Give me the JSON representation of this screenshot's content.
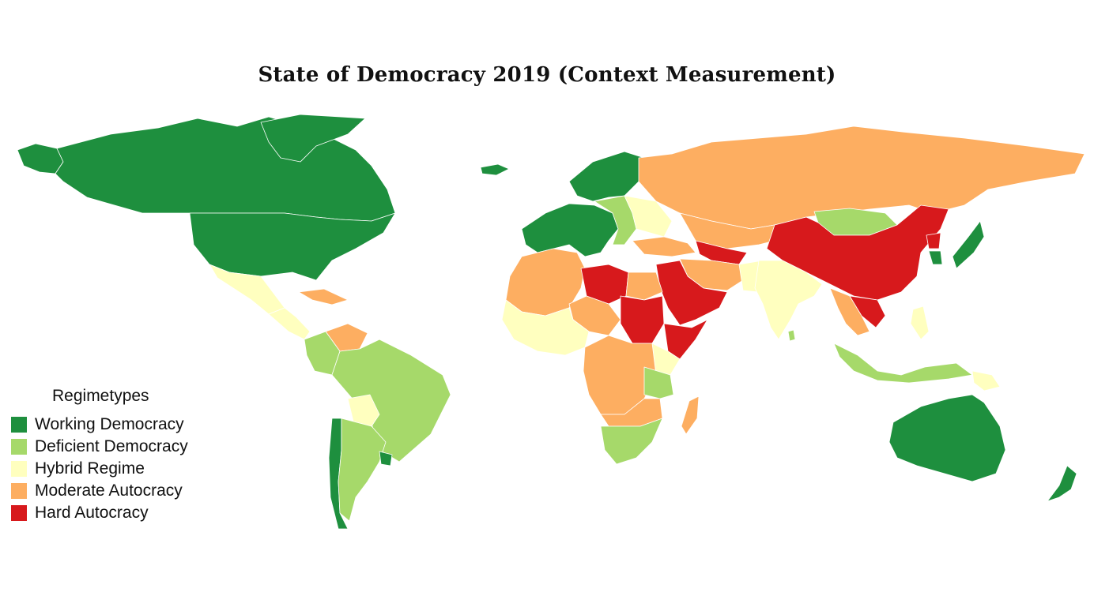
{
  "title": "State of Democracy 2019 (Context Measurement)",
  "legend": {
    "title": "Regimetypes",
    "items": [
      {
        "key": "working",
        "label": "Working Democracy",
        "color": "#1e8f3e"
      },
      {
        "key": "deficient",
        "label": "Deficient Democracy",
        "color": "#a6d96a"
      },
      {
        "key": "hybrid",
        "label": "Hybrid Regime",
        "color": "#ffffbf"
      },
      {
        "key": "moderate",
        "label": "Moderate Autocracy",
        "color": "#fdae61"
      },
      {
        "key": "hard",
        "label": "Hard Autocracy",
        "color": "#d7191c"
      }
    ]
  },
  "regions": [
    {
      "name": "canada",
      "regime": "working"
    },
    {
      "name": "united-states",
      "regime": "working"
    },
    {
      "name": "alaska",
      "regime": "working"
    },
    {
      "name": "greenland",
      "regime": "working"
    },
    {
      "name": "mexico",
      "regime": "hybrid"
    },
    {
      "name": "central-america",
      "regime": "hybrid"
    },
    {
      "name": "cuba",
      "regime": "moderate"
    },
    {
      "name": "venezuela",
      "regime": "moderate"
    },
    {
      "name": "colombia",
      "regime": "deficient"
    },
    {
      "name": "brazil",
      "regime": "deficient"
    },
    {
      "name": "bolivia",
      "regime": "hybrid"
    },
    {
      "name": "chile",
      "regime": "working"
    },
    {
      "name": "argentina",
      "regime": "deficient"
    },
    {
      "name": "uruguay",
      "regime": "working"
    },
    {
      "name": "western-europe",
      "regime": "working"
    },
    {
      "name": "scandinavia",
      "regime": "working"
    },
    {
      "name": "iceland",
      "regime": "working"
    },
    {
      "name": "eastern-europe",
      "regime": "deficient"
    },
    {
      "name": "belarus-ukraine",
      "regime": "hybrid"
    },
    {
      "name": "russia",
      "regime": "moderate"
    },
    {
      "name": "kazakhstan-central-asia",
      "regime": "moderate"
    },
    {
      "name": "mongolia",
      "regime": "deficient"
    },
    {
      "name": "china",
      "regime": "hard"
    },
    {
      "name": "north-korea",
      "regime": "hard"
    },
    {
      "name": "south-korea",
      "regime": "working"
    },
    {
      "name": "japan",
      "regime": "working"
    },
    {
      "name": "turkey-caucasus",
      "regime": "moderate"
    },
    {
      "name": "iran",
      "regime": "moderate"
    },
    {
      "name": "turkmenistan-region",
      "regime": "hard"
    },
    {
      "name": "arabian-peninsula",
      "regime": "hard"
    },
    {
      "name": "india",
      "regime": "hybrid"
    },
    {
      "name": "pakistan",
      "regime": "hybrid"
    },
    {
      "name": "southeast-asia-mainland",
      "regime": "moderate"
    },
    {
      "name": "vietnam-laos",
      "regime": "hard"
    },
    {
      "name": "indonesia",
      "regime": "deficient"
    },
    {
      "name": "philippines",
      "regime": "hybrid"
    },
    {
      "name": "papua-new-guinea",
      "regime": "hybrid"
    },
    {
      "name": "australia",
      "regime": "working"
    },
    {
      "name": "new-zealand",
      "regime": "working"
    },
    {
      "name": "north-africa-west",
      "regime": "moderate"
    },
    {
      "name": "libya",
      "regime": "hard"
    },
    {
      "name": "egypt",
      "regime": "moderate"
    },
    {
      "name": "sudan",
      "regime": "hard"
    },
    {
      "name": "west-africa",
      "regime": "hybrid"
    },
    {
      "name": "chad-niger",
      "regime": "moderate"
    },
    {
      "name": "horn-of-africa",
      "regime": "hard"
    },
    {
      "name": "east-africa",
      "regime": "hybrid"
    },
    {
      "name": "central-africa",
      "regime": "moderate"
    },
    {
      "name": "kenya-tanzania",
      "regime": "deficient"
    },
    {
      "name": "angola-zambia",
      "regime": "moderate"
    },
    {
      "name": "southern-africa",
      "regime": "deficient"
    },
    {
      "name": "madagascar",
      "regime": "moderate"
    },
    {
      "name": "sri-lanka",
      "regime": "deficient"
    }
  ]
}
